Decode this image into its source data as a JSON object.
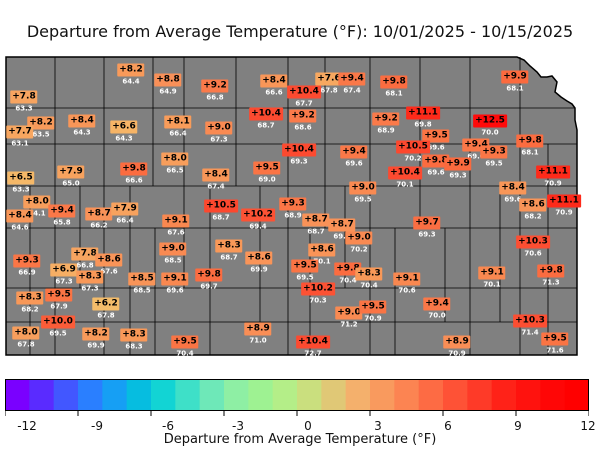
{
  "title": "Departure from Average Temperature (°F): 10/01/2025 - 10/15/2025",
  "colorbar": {
    "label": "Departure from Average Temperature (°F)",
    "ticks": [
      "-12",
      "-9",
      "-6",
      "-3",
      "0",
      "3",
      "6",
      "9",
      "12"
    ],
    "min": -12,
    "max": 12,
    "step": 1,
    "colors": [
      "#7a00ff",
      "#5a2bff",
      "#4257ff",
      "#2a7fff",
      "#169ff4",
      "#06bde0",
      "#12d4d4",
      "#3ee0c8",
      "#6ee8b8",
      "#8eefa4",
      "#9ef292",
      "#b4ee88",
      "#cadf7e",
      "#e0c876",
      "#f4b06c",
      "#f99a5e",
      "#fc8452",
      "#fd6b44",
      "#fe5236",
      "#fe3a28",
      "#ff2218",
      "#ff120e",
      "#ff0606",
      "#ff0000"
    ]
  },
  "stations": [
    {
      "dep": "+8.2",
      "avg": "64.4",
      "col": "#f89a5a"
    },
    {
      "dep": "+8.8",
      "avg": "64.9",
      "col": "#f99058"
    },
    {
      "dep": "+9.2",
      "avg": "66.8",
      "col": "#fa7a4a"
    },
    {
      "dep": "+8.4",
      "avg": "66.6",
      "col": "#f89658"
    },
    {
      "dep": "+7.6",
      "avg": "67.8",
      "col": "#f7a860"
    },
    {
      "dep": "+10.4",
      "avg": "67.7",
      "col": "#fc4a30"
    },
    {
      "dep": "+9.4",
      "avg": "67.4",
      "col": "#fa7848"
    },
    {
      "dep": "+9.8",
      "avg": "68.1",
      "col": "#fb6c40"
    },
    {
      "dep": "+9.9",
      "avg": "68.1",
      "col": "#fb6a3e"
    },
    {
      "dep": "+7.8",
      "avg": "63.3",
      "col": "#f7a460"
    },
    {
      "dep": "+8.2",
      "avg": "63.5",
      "col": "#f89a5a"
    },
    {
      "dep": "+7.7",
      "avg": "63.1",
      "col": "#f7a660"
    },
    {
      "dep": "+8.4",
      "avg": "64.3",
      "col": "#f89658"
    },
    {
      "dep": "+6.6",
      "avg": "64.3",
      "col": "#f6b466"
    },
    {
      "dep": "+8.1",
      "avg": "66.4",
      "col": "#f89c5a"
    },
    {
      "dep": "+9.0",
      "avg": "67.3",
      "col": "#f98a52"
    },
    {
      "dep": "+10.4",
      "avg": "68.7",
      "col": "#fc4a30"
    },
    {
      "dep": "+9.2",
      "avg": "68.6",
      "col": "#fa7a4a"
    },
    {
      "dep": "+9.2",
      "avg": "68.9",
      "col": "#fa7a4a"
    },
    {
      "dep": "+11.1",
      "avg": "69.8",
      "col": "#fe2a1a"
    },
    {
      "dep": "+12.5",
      "avg": "70.0",
      "col": "#ff0a0a"
    },
    {
      "dep": "+9.5",
      "avg": "69.6",
      "col": "#fa7444"
    },
    {
      "dep": "+9.4",
      "avg": "69.6",
      "col": "#fa7848"
    },
    {
      "dep": "+9.8",
      "avg": "68.1",
      "col": "#fb6c40"
    },
    {
      "dep": "+6.5",
      "avg": "63.3",
      "col": "#f5b868"
    },
    {
      "dep": "+7.9",
      "avg": "65.0",
      "col": "#f7a25e"
    },
    {
      "dep": "+9.8",
      "avg": "66.6",
      "col": "#fb6c40"
    },
    {
      "dep": "+8.0",
      "avg": "66.5",
      "col": "#f79e5c"
    },
    {
      "dep": "+8.4",
      "avg": "67.4",
      "col": "#f89658"
    },
    {
      "dep": "+9.5",
      "avg": "69.0",
      "col": "#fa7444"
    },
    {
      "dep": "+10.4",
      "avg": "69.3",
      "col": "#fc4a30"
    },
    {
      "dep": "+9.4",
      "avg": "69.6",
      "col": "#fa7848"
    },
    {
      "dep": "+10.5",
      "avg": "70.2",
      "col": "#fc482e"
    },
    {
      "dep": "+9.8",
      "avg": "69.6",
      "col": "#fb6c40"
    },
    {
      "dep": "+9.9",
      "avg": "69.3",
      "col": "#fb6a3e"
    },
    {
      "dep": "+9.3",
      "avg": "69.5",
      "col": "#fa7646"
    },
    {
      "dep": "+11.1",
      "avg": "70.9",
      "col": "#fe2a1a"
    },
    {
      "dep": "+8.0",
      "avg": "64.1",
      "col": "#f79e5c"
    },
    {
      "dep": "+8.4",
      "avg": "64.6",
      "col": "#f89658"
    },
    {
      "dep": "+9.4",
      "avg": "65.8",
      "col": "#fa7848"
    },
    {
      "dep": "+8.7",
      "avg": "66.2",
      "col": "#f99258"
    },
    {
      "dep": "+7.9",
      "avg": "66.4",
      "col": "#f7a25e"
    },
    {
      "dep": "+10.5",
      "avg": "68.7",
      "col": "#fc482e"
    },
    {
      "dep": "+10.4",
      "avg": "70.1",
      "col": "#fc4a30"
    },
    {
      "dep": "+9.0",
      "avg": "69.5",
      "col": "#f98a52"
    },
    {
      "dep": "+8.4",
      "avg": "69.6",
      "col": "#f89658"
    },
    {
      "dep": "+11.1",
      "avg": "70.9",
      "col": "#fe2a1a"
    },
    {
      "dep": "+9.1",
      "avg": "67.6",
      "col": "#f98850"
    },
    {
      "dep": "+10.2",
      "avg": "69.4",
      "col": "#fc5234"
    },
    {
      "dep": "+9.3",
      "avg": "68.9",
      "col": "#fa7646"
    },
    {
      "dep": "+8.7",
      "avg": "68.7",
      "col": "#f99258"
    },
    {
      "dep": "+8.7",
      "avg": "69.9",
      "col": "#f99258"
    },
    {
      "dep": "+9.7",
      "avg": "69.3",
      "col": "#fb6e42"
    },
    {
      "dep": "+8.6",
      "avg": "68.2",
      "col": "#f99458"
    },
    {
      "dep": "+10.3",
      "avg": "70.6",
      "col": "#fc4e32"
    },
    {
      "dep": "+9.3",
      "avg": "66.9",
      "col": "#fa7646"
    },
    {
      "dep": "+7.8",
      "avg": "66.8",
      "col": "#f7a460"
    },
    {
      "dep": "+6.9",
      "avg": "67.3",
      "col": "#f6ae64"
    },
    {
      "dep": "+8.6",
      "avg": "67.6",
      "col": "#f99458"
    },
    {
      "dep": "+8.3",
      "avg": "67.3",
      "col": "#f89858"
    },
    {
      "dep": "+9.0",
      "avg": "68.5",
      "col": "#f98a52"
    },
    {
      "dep": "+8.3",
      "avg": "68.7",
      "col": "#f89858"
    },
    {
      "dep": "+8.6",
      "avg": "69.9",
      "col": "#f99458"
    },
    {
      "dep": "+8.6",
      "avg": "70.1",
      "col": "#f99458"
    },
    {
      "dep": "+9.0",
      "avg": "70.2",
      "col": "#f98a52"
    },
    {
      "dep": "+9.5",
      "avg": "69.5",
      "col": "#fa7444"
    },
    {
      "dep": "+9.8",
      "avg": "70.4",
      "col": "#fb6c40"
    },
    {
      "dep": "+8.3",
      "avg": "70.4",
      "col": "#f89858"
    },
    {
      "dep": "+9.1",
      "avg": "70.6",
      "col": "#f98850"
    },
    {
      "dep": "+9.1",
      "avg": "70.1",
      "col": "#f98850"
    },
    {
      "dep": "+9.8",
      "avg": "71.3",
      "col": "#fb6c40"
    },
    {
      "dep": "+8.3",
      "avg": "68.2",
      "col": "#f89858"
    },
    {
      "dep": "+9.5",
      "avg": "67.9",
      "col": "#fa7444"
    },
    {
      "dep": "+8.5",
      "avg": "68.5",
      "col": "#f89458"
    },
    {
      "dep": "+9.1",
      "avg": "69.6",
      "col": "#f98850"
    },
    {
      "dep": "+9.8",
      "avg": "69.7",
      "col": "#fb6c40"
    },
    {
      "dep": "+10.2",
      "avg": "70.3",
      "col": "#fc5234"
    },
    {
      "dep": "+6.2",
      "avg": "67.8",
      "col": "#f4bc6a"
    },
    {
      "dep": "+10.0",
      "avg": "69.5",
      "col": "#fb5c38"
    },
    {
      "dep": "+9.0",
      "avg": "71.2",
      "col": "#f98a52"
    },
    {
      "dep": "+9.5",
      "avg": "70.9",
      "col": "#fa7444"
    },
    {
      "dep": "+9.4",
      "avg": "70.0",
      "col": "#fa7848"
    },
    {
      "dep": "+10.3",
      "avg": "71.4",
      "col": "#fc4e32"
    },
    {
      "dep": "+8.0",
      "avg": "67.8",
      "col": "#f79e5c"
    },
    {
      "dep": "+8.2",
      "avg": "69.9",
      "col": "#f89a5a"
    },
    {
      "dep": "+8.3",
      "avg": "68.3",
      "col": "#f89858"
    },
    {
      "dep": "+9.5",
      "avg": "70.4",
      "col": "#fa7444"
    },
    {
      "dep": "+8.9",
      "avg": "71.0",
      "col": "#f98e56"
    },
    {
      "dep": "+10.4",
      "avg": "72.7",
      "col": "#fc4a30"
    },
    {
      "dep": "+8.9",
      "avg": "70.9",
      "col": "#f98e56"
    },
    {
      "dep": "+9.5",
      "avg": "71.6",
      "col": "#fa7444"
    }
  ]
}
